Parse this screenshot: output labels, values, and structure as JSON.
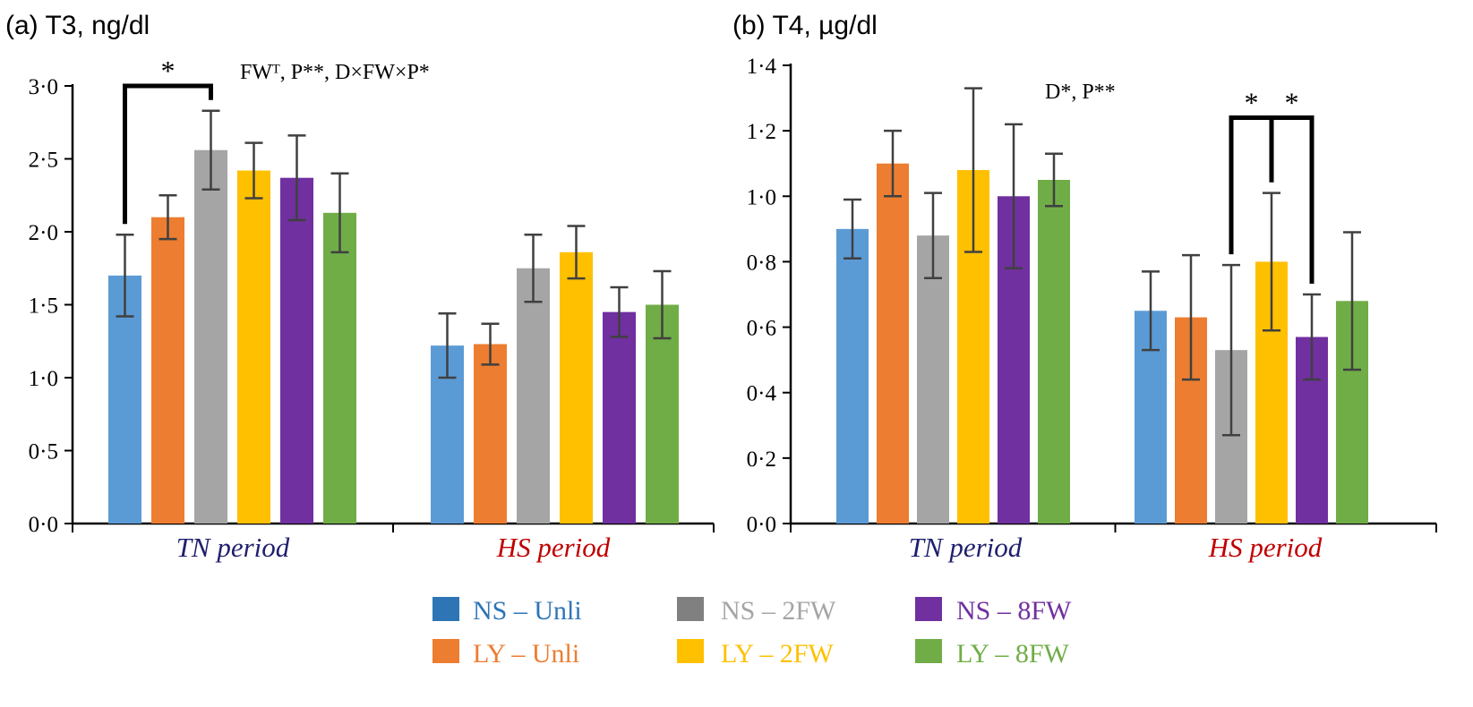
{
  "colors": {
    "series": [
      "#5b9bd5",
      "#ed7d31",
      "#a5a5a5",
      "#ffc000",
      "#7030a0",
      "#70ad47"
    ],
    "legend_text": [
      "#2e75b6",
      "#ed7d31",
      "#a5a5a5",
      "#ffc000",
      "#7030a0",
      "#70ad47"
    ],
    "tn_label": "#1f1f6e",
    "hs_label": "#c00000",
    "axis": "#000000",
    "error_bar": "#404040"
  },
  "legend": {
    "entries": [
      "NS – Unli",
      "LY – Unli",
      "NS – 2FW",
      "LY – 2FW",
      "NS – 8FW",
      "LY – 8FW"
    ]
  },
  "chart_data": [
    {
      "type": "bar",
      "title": "(a) T3, ng/dl",
      "annotation": "FWᵀ, P**, D×FW×P*",
      "categories": [
        "TN period",
        "HS period"
      ],
      "ylim": [
        0,
        3.0
      ],
      "yticks": [
        "0·0",
        "0·5",
        "1·0",
        "1·5",
        "2·0",
        "2·5",
        "3·0"
      ],
      "ytick_values": [
        0,
        0.5,
        1.0,
        1.5,
        2.0,
        2.5,
        3.0
      ],
      "series": [
        {
          "name": "NS – Unli",
          "values": [
            1.7,
            1.22
          ],
          "errors": [
            0.28,
            0.22
          ]
        },
        {
          "name": "LY – Unli",
          "values": [
            2.1,
            1.23
          ],
          "errors": [
            0.15,
            0.14
          ]
        },
        {
          "name": "NS – 2FW",
          "values": [
            2.56,
            1.75
          ],
          "errors": [
            0.27,
            0.23
          ]
        },
        {
          "name": "LY – 2FW",
          "values": [
            2.42,
            1.86
          ],
          "errors": [
            0.19,
            0.18
          ]
        },
        {
          "name": "NS – 8FW",
          "values": [
            2.37,
            1.45
          ],
          "errors": [
            0.29,
            0.17
          ]
        },
        {
          "name": "LY – 8FW",
          "values": [
            2.13,
            1.5
          ],
          "errors": [
            0.27,
            0.23
          ]
        }
      ],
      "significance": [
        {
          "label": "*",
          "group": 0,
          "from": 0,
          "to": 2,
          "level": 3.0
        }
      ]
    },
    {
      "type": "bar",
      "title": "(b) T4, µg/dl",
      "annotation": "D*, P**",
      "categories": [
        "TN period",
        "HS period"
      ],
      "ylim": [
        0,
        1.4
      ],
      "yticks": [
        "0·0",
        "0·2",
        "0·4",
        "0·6",
        "0·8",
        "1·0",
        "1·2",
        "1·4"
      ],
      "ytick_values": [
        0,
        0.2,
        0.4,
        0.6,
        0.8,
        1.0,
        1.2,
        1.4
      ],
      "series": [
        {
          "name": "NS – Unli",
          "values": [
            0.9,
            0.65
          ],
          "errors": [
            0.09,
            0.12
          ]
        },
        {
          "name": "LY – Unli",
          "values": [
            1.1,
            0.63
          ],
          "errors": [
            0.1,
            0.19
          ]
        },
        {
          "name": "NS – 2FW",
          "values": [
            0.88,
            0.53
          ],
          "errors": [
            0.13,
            0.26
          ]
        },
        {
          "name": "LY – 2FW",
          "values": [
            1.08,
            0.8
          ],
          "errors": [
            0.25,
            0.21
          ]
        },
        {
          "name": "NS – 8FW",
          "values": [
            1.0,
            0.57
          ],
          "errors": [
            0.22,
            0.13
          ]
        },
        {
          "name": "LY – 8FW",
          "values": [
            1.05,
            0.68
          ],
          "errors": [
            0.08,
            0.21
          ]
        }
      ],
      "significance": [
        {
          "label": "*",
          "group": 1,
          "from": 2,
          "to": 3,
          "level": 1.24
        },
        {
          "label": "*",
          "group": 1,
          "from": 3,
          "to": 4,
          "level": 1.24
        }
      ]
    }
  ]
}
